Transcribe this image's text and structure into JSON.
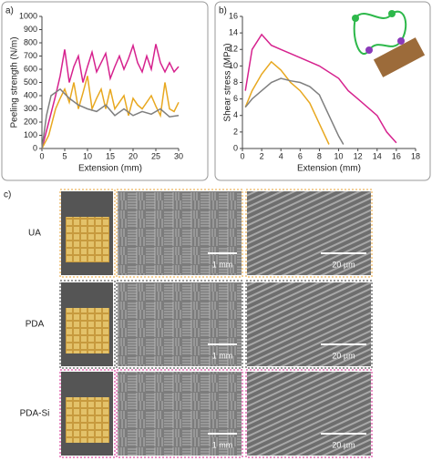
{
  "chart_data": [
    {
      "type": "line",
      "panel_label": "a)",
      "x_label": "Extension (mm)",
      "y_label": "Peeling strength (N/m)",
      "xlim": [
        0,
        30
      ],
      "xticks": [
        0,
        5,
        10,
        15,
        20,
        25,
        30
      ],
      "ylim": [
        0,
        1000
      ],
      "yticks": [
        0,
        100,
        200,
        300,
        400,
        500,
        600,
        700,
        800,
        900,
        1000
      ],
      "series": [
        {
          "color": "#d6228e",
          "x": [
            0,
            1.5,
            3,
            4,
            5,
            6,
            7,
            8,
            9,
            10,
            11,
            12,
            13,
            14,
            15,
            16,
            17,
            18,
            19,
            20,
            21,
            22,
            23,
            24,
            25,
            26,
            27,
            28,
            29,
            30
          ],
          "values": [
            0,
            200,
            400,
            550,
            750,
            500,
            620,
            700,
            500,
            620,
            730,
            580,
            650,
            720,
            530,
            620,
            700,
            600,
            680,
            780,
            650,
            580,
            700,
            600,
            790,
            650,
            580,
            650,
            580,
            620
          ]
        },
        {
          "color": "#e8a820",
          "x": [
            0,
            1.5,
            3,
            4,
            5,
            6,
            7,
            8,
            9,
            10,
            11,
            12,
            13,
            14,
            15,
            16,
            17,
            18,
            19,
            20,
            21,
            22,
            23,
            24,
            25,
            26,
            27,
            28,
            29,
            30
          ],
          "values": [
            0,
            100,
            300,
            380,
            450,
            350,
            500,
            300,
            420,
            550,
            300,
            380,
            450,
            300,
            450,
            300,
            350,
            400,
            250,
            380,
            330,
            300,
            350,
            400,
            320,
            250,
            500,
            300,
            280,
            350
          ]
        },
        {
          "color": "#7f7f7f",
          "x": [
            0,
            1,
            2,
            4,
            6,
            8,
            10,
            12,
            14,
            16,
            18,
            20,
            22,
            24,
            26,
            28,
            30
          ],
          "values": [
            0,
            250,
            400,
            450,
            380,
            330,
            300,
            280,
            330,
            250,
            300,
            250,
            280,
            260,
            300,
            240,
            250
          ]
        }
      ]
    },
    {
      "type": "line",
      "panel_label": "b)",
      "x_label": "Extension (mm)",
      "y_label": "Shear stress (MPa)",
      "xlim": [
        0,
        18
      ],
      "xticks": [
        0,
        2,
        4,
        6,
        8,
        10,
        12,
        14,
        16,
        18
      ],
      "ylim": [
        0,
        16
      ],
      "yticks": [
        0,
        2,
        4,
        6,
        8,
        10,
        12,
        14,
        16
      ],
      "series": [
        {
          "color": "#d6228e",
          "x": [
            0.3,
            1,
            2,
            3,
            4,
            5,
            6,
            8,
            10,
            11,
            12,
            14,
            15,
            16
          ],
          "values": [
            7,
            12,
            13.8,
            12.5,
            12,
            11.5,
            11,
            10,
            8.5,
            7,
            6,
            4,
            2,
            0.7
          ]
        },
        {
          "color": "#e8a820",
          "x": [
            0.3,
            1,
            2,
            3,
            4,
            5,
            6,
            7,
            8,
            9
          ],
          "values": [
            5,
            7,
            9,
            10.5,
            9.5,
            8,
            7,
            5.5,
            3,
            0.5
          ]
        },
        {
          "color": "#7f7f7f",
          "x": [
            0.3,
            1,
            2,
            3,
            4,
            5,
            6,
            7,
            8,
            9,
            10,
            10.5
          ],
          "values": [
            5,
            6,
            7,
            8,
            8.5,
            8.2,
            8,
            7.5,
            6.5,
            4,
            1.5,
            0.5
          ]
        }
      ]
    }
  ],
  "panel_c": {
    "label": "c)",
    "rows": [
      {
        "label": "UA",
        "color": "#e8a030",
        "scale_bars": [
          "1 mm",
          "20 µm"
        ]
      },
      {
        "label": "PDA",
        "color": "#333333",
        "scale_bars": [
          "1 mm",
          "20 µm"
        ]
      },
      {
        "label": "PDA-Si",
        "color": "#d6228e",
        "scale_bars": [
          "1 mm",
          "20 µm"
        ]
      }
    ]
  }
}
